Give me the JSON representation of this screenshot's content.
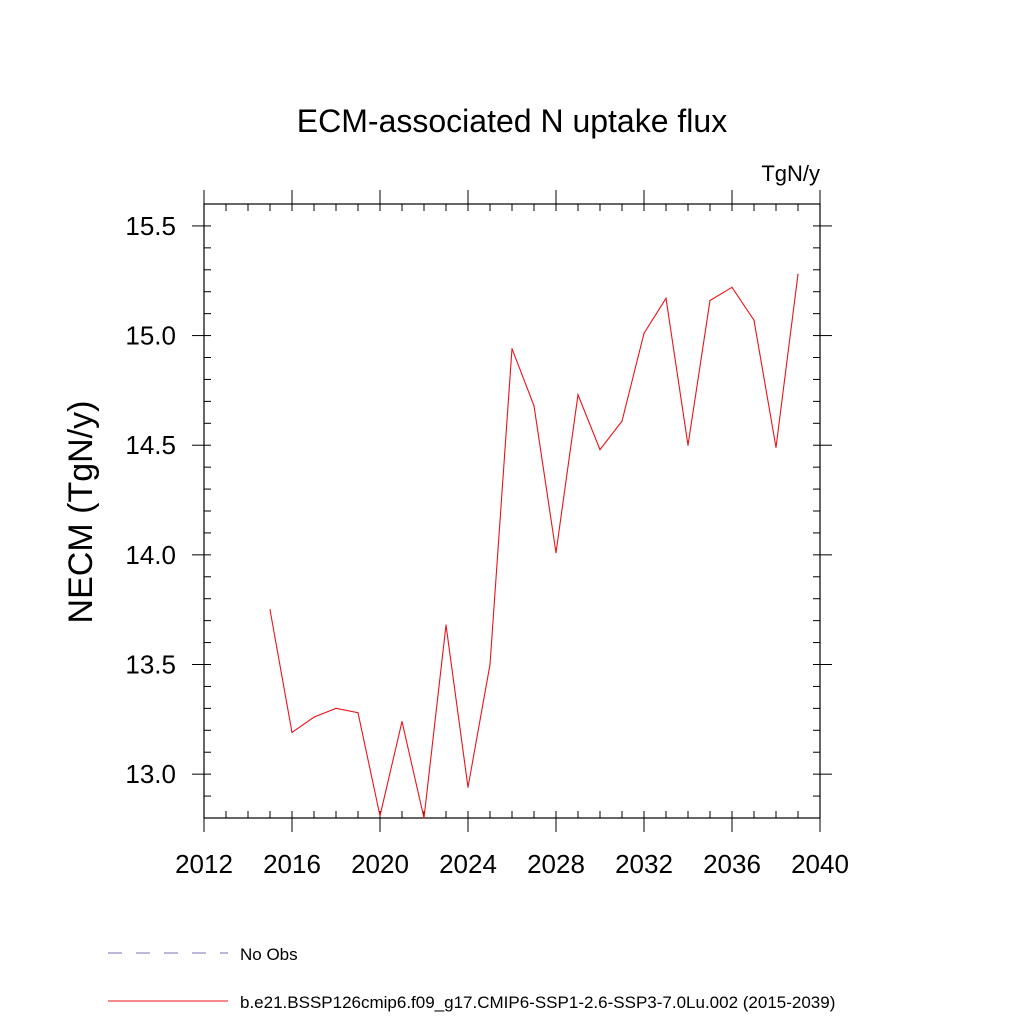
{
  "chart_data": {
    "type": "line",
    "title": "ECM-associated N uptake flux",
    "units_label": "TgN/y",
    "ylabel": "NECM  (TgN/y)",
    "xlabel": "",
    "xlim": [
      2012,
      2040
    ],
    "ylim": [
      12.8,
      15.6
    ],
    "x_ticks": [
      2012,
      2016,
      2020,
      2024,
      2028,
      2032,
      2036,
      2040
    ],
    "x_tick_labels": [
      "2012",
      "2016",
      "2020",
      "2024",
      "2028",
      "2032",
      "2036",
      "2040"
    ],
    "y_ticks": [
      13.0,
      13.5,
      14.0,
      14.5,
      15.0,
      15.5
    ],
    "y_tick_labels": [
      "13.0",
      "13.5",
      "14.0",
      "14.5",
      "15.0",
      "15.5"
    ],
    "grid": false,
    "legend_position": "bottom",
    "series": [
      {
        "name": "b.e21.BSSP126cmip6.f09_g17.CMIP6-SSP1-2.6-SSP3-7.0Lu.002 (2015-2039)",
        "color": "#e8141c",
        "x": [
          2015,
          2016,
          2017,
          2018,
          2019,
          2020,
          2021,
          2022,
          2023,
          2024,
          2025,
          2026,
          2027,
          2028,
          2029,
          2030,
          2031,
          2032,
          2033,
          2034,
          2035,
          2036,
          2037,
          2038,
          2039
        ],
        "y": [
          13.75,
          13.19,
          13.26,
          13.3,
          13.28,
          12.81,
          13.24,
          12.8,
          13.68,
          12.94,
          13.5,
          14.94,
          14.68,
          14.01,
          14.73,
          14.48,
          14.61,
          15.01,
          15.17,
          14.5,
          15.16,
          15.22,
          15.07,
          14.49,
          15.28
        ]
      }
    ],
    "legend": [
      {
        "label": "No Obs",
        "style": "dashed",
        "color": "#7b6fb5"
      },
      {
        "label": "b.e21.BSSP126cmip6.f09_g17.CMIP6-SSP1-2.6-SSP3-7.0Lu.002 (2015-2039)",
        "style": "solid",
        "color": "#e8141c"
      }
    ]
  }
}
